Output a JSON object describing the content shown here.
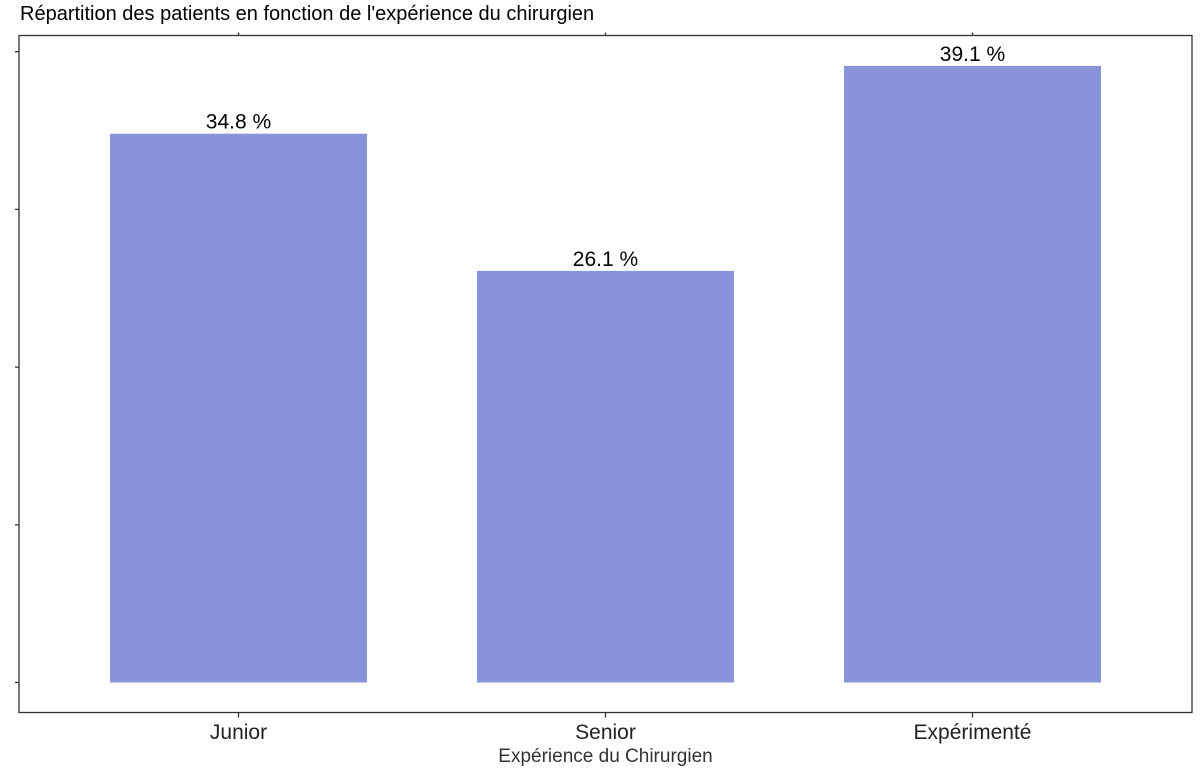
{
  "chart_data": {
    "type": "bar",
    "title": "Répartition des patients en fonction de l'expérience du chirurgien",
    "xlabel": "Expérience du Chirurgien",
    "ylabel": "",
    "categories": [
      "Junior",
      "Senior",
      "Expérimenté"
    ],
    "values": [
      34.8,
      26.1,
      39.1
    ],
    "data_labels": [
      "34.8 %",
      "26.1 %",
      "39.1 %"
    ],
    "ylim": [
      0,
      41
    ],
    "y_tick_labels_shown": false,
    "grid": false,
    "legend": "none",
    "bar_color": "#8893DA"
  }
}
